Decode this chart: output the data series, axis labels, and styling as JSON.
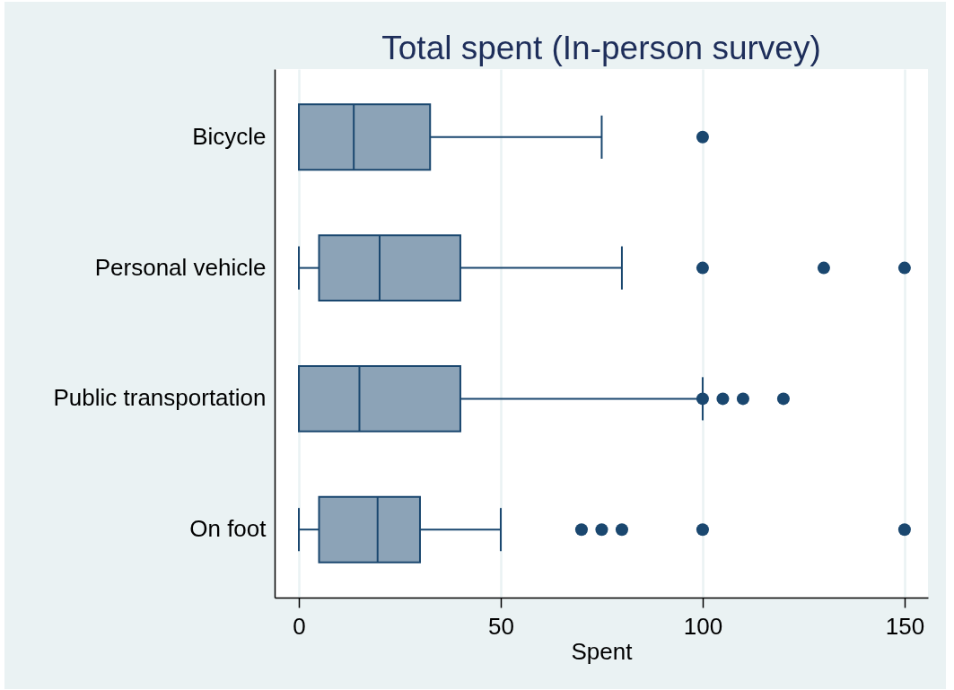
{
  "chart_data": {
    "type": "box",
    "title": "Total spent (In-person survey)",
    "xlabel": "Spent",
    "orientation": "horizontal",
    "categories": [
      "Bicycle",
      "Personal vehicle",
      "Public transportation",
      "On foot"
    ],
    "color": "#1a476f",
    "boxes": [
      {
        "low": 0,
        "q1": 0,
        "median": 13.6,
        "q3": 32.5,
        "high": 75,
        "outliers": [
          100
        ]
      },
      {
        "low": 0,
        "q1": 5,
        "median": 20,
        "q3": 40,
        "high": 80,
        "outliers": [
          100,
          130,
          150
        ]
      },
      {
        "low": 0,
        "q1": 0,
        "median": 15,
        "q3": 40,
        "high": 100,
        "outliers": [
          100,
          105,
          110,
          120
        ]
      },
      {
        "low": 0,
        "q1": 5,
        "median": 19.5,
        "q3": 30,
        "high": 50,
        "outliers": [
          70,
          75,
          80,
          100,
          150
        ]
      }
    ],
    "xlim": [
      -6,
      155.8
    ],
    "xticks": [
      0,
      50,
      100,
      150
    ],
    "grid": "x",
    "marker": "circle"
  }
}
